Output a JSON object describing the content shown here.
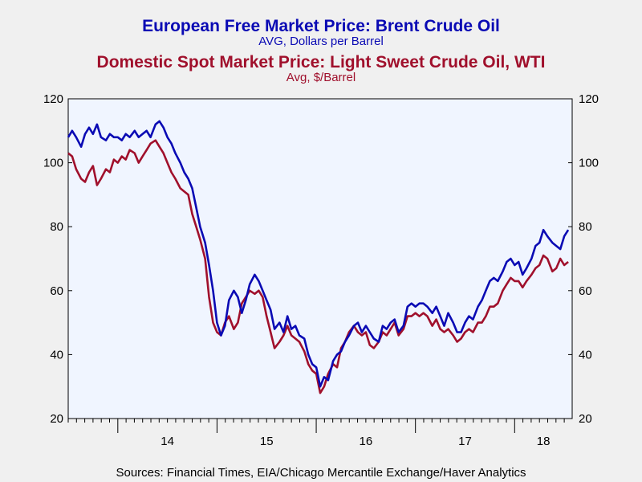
{
  "chart_data": {
    "type": "line",
    "titles": [
      {
        "title": "European Free Market Price: Brent Crude Oil",
        "subtitle": "AVG, Dollars per Barrel",
        "color": "#0a0ab4"
      },
      {
        "title": "Domestic Spot Market Price: Light Sweet Crude Oil, WTI",
        "subtitle": "Avg, $/Barrel",
        "color": "#a0102c"
      }
    ],
    "ylim": [
      20,
      120
    ],
    "yticks": [
      20,
      40,
      60,
      80,
      100,
      120
    ],
    "y_tick_labels": [
      "20",
      "40",
      "60",
      "80",
      "100",
      "120"
    ],
    "xlim": [
      2013.5,
      2018.58
    ],
    "year_ticks": [
      2014,
      2015,
      2016,
      2017,
      2018
    ],
    "x_tick_labels": [
      "14",
      "15",
      "16",
      "17",
      "18"
    ],
    "grid": false,
    "right_axis": true,
    "series": [
      {
        "name": "Brent",
        "color": "#0a0ab4",
        "x": [
          2013.5,
          2013.54,
          2013.58,
          2013.63,
          2013.67,
          2013.71,
          2013.75,
          2013.79,
          2013.83,
          2013.88,
          2013.92,
          2013.96,
          2014.0,
          2014.04,
          2014.08,
          2014.12,
          2014.17,
          2014.21,
          2014.25,
          2014.29,
          2014.33,
          2014.38,
          2014.42,
          2014.46,
          2014.5,
          2014.54,
          2014.58,
          2014.63,
          2014.67,
          2014.71,
          2014.75,
          2014.79,
          2014.83,
          2014.88,
          2014.92,
          2014.96,
          2015.0,
          2015.04,
          2015.08,
          2015.12,
          2015.17,
          2015.21,
          2015.25,
          2015.29,
          2015.33,
          2015.38,
          2015.42,
          2015.46,
          2015.5,
          2015.54,
          2015.58,
          2015.63,
          2015.67,
          2015.71,
          2015.75,
          2015.79,
          2015.83,
          2015.88,
          2015.92,
          2015.96,
          2016.0,
          2016.04,
          2016.08,
          2016.12,
          2016.17,
          2016.21,
          2016.25,
          2016.29,
          2016.33,
          2016.38,
          2016.42,
          2016.46,
          2016.5,
          2016.54,
          2016.58,
          2016.63,
          2016.67,
          2016.71,
          2016.75,
          2016.79,
          2016.83,
          2016.88,
          2016.92,
          2016.96,
          2017.0,
          2017.04,
          2017.08,
          2017.12,
          2017.17,
          2017.21,
          2017.25,
          2017.29,
          2017.33,
          2017.38,
          2017.42,
          2017.46,
          2017.5,
          2017.54,
          2017.58,
          2017.63,
          2017.67,
          2017.71,
          2017.75,
          2017.79,
          2017.83,
          2017.88,
          2017.92,
          2017.96,
          2018.0,
          2018.04,
          2018.08,
          2018.12,
          2018.17,
          2018.21,
          2018.25,
          2018.29,
          2018.33,
          2018.38,
          2018.42,
          2018.46,
          2018.5,
          2018.54
        ],
        "values": [
          108,
          110,
          108,
          105,
          109,
          111,
          109,
          112,
          108,
          107,
          109,
          108,
          108,
          107,
          109,
          108,
          110,
          108,
          109,
          110,
          108,
          112,
          113,
          111,
          108,
          106,
          103,
          100,
          97,
          95,
          92,
          86,
          80,
          75,
          68,
          60,
          50,
          46,
          49,
          57,
          60,
          58,
          53,
          57,
          62,
          65,
          63,
          60,
          57,
          54,
          48,
          50,
          47,
          52,
          48,
          49,
          46,
          45,
          40,
          37,
          36,
          30,
          33,
          32,
          38,
          40,
          41,
          44,
          46,
          49,
          50,
          47,
          49,
          47,
          45,
          44,
          49,
          48,
          50,
          51,
          47,
          49,
          55,
          56,
          55,
          56,
          56,
          55,
          53,
          55,
          52,
          49,
          53,
          50,
          47,
          47,
          50,
          52,
          51,
          55,
          57,
          60,
          63,
          64,
          63,
          66,
          69,
          70,
          68,
          69,
          65,
          67,
          70,
          74,
          75,
          79,
          77,
          75,
          74,
          73,
          77,
          79
        ]
      },
      {
        "name": "WTI",
        "color": "#a0102c",
        "x": [
          2013.5,
          2013.54,
          2013.58,
          2013.63,
          2013.67,
          2013.71,
          2013.75,
          2013.79,
          2013.83,
          2013.88,
          2013.92,
          2013.96,
          2014.0,
          2014.04,
          2014.08,
          2014.12,
          2014.17,
          2014.21,
          2014.25,
          2014.29,
          2014.33,
          2014.38,
          2014.42,
          2014.46,
          2014.5,
          2014.54,
          2014.58,
          2014.63,
          2014.67,
          2014.71,
          2014.75,
          2014.79,
          2014.83,
          2014.88,
          2014.92,
          2014.96,
          2015.0,
          2015.04,
          2015.08,
          2015.12,
          2015.17,
          2015.21,
          2015.25,
          2015.29,
          2015.33,
          2015.38,
          2015.42,
          2015.46,
          2015.5,
          2015.54,
          2015.58,
          2015.63,
          2015.67,
          2015.71,
          2015.75,
          2015.79,
          2015.83,
          2015.88,
          2015.92,
          2015.96,
          2016.0,
          2016.04,
          2016.08,
          2016.12,
          2016.17,
          2016.21,
          2016.25,
          2016.29,
          2016.33,
          2016.38,
          2016.42,
          2016.46,
          2016.5,
          2016.54,
          2016.58,
          2016.63,
          2016.67,
          2016.71,
          2016.75,
          2016.79,
          2016.83,
          2016.88,
          2016.92,
          2016.96,
          2017.0,
          2017.04,
          2017.08,
          2017.12,
          2017.17,
          2017.21,
          2017.25,
          2017.29,
          2017.33,
          2017.38,
          2017.42,
          2017.46,
          2017.5,
          2017.54,
          2017.58,
          2017.63,
          2017.67,
          2017.71,
          2017.75,
          2017.79,
          2017.83,
          2017.88,
          2017.92,
          2017.96,
          2018.0,
          2018.04,
          2018.08,
          2018.12,
          2018.17,
          2018.21,
          2018.25,
          2018.29,
          2018.33,
          2018.38,
          2018.42,
          2018.46,
          2018.5,
          2018.54
        ],
        "values": [
          103,
          102,
          98,
          95,
          94,
          97,
          99,
          93,
          95,
          98,
          97,
          101,
          100,
          102,
          101,
          104,
          103,
          100,
          102,
          104,
          106,
          107,
          105,
          103,
          100,
          97,
          95,
          92,
          91,
          90,
          84,
          80,
          76,
          70,
          58,
          50,
          47,
          46,
          50,
          52,
          48,
          50,
          56,
          58,
          60,
          59,
          60,
          58,
          52,
          47,
          42,
          44,
          46,
          49,
          46,
          45,
          44,
          41,
          37,
          35,
          34,
          28,
          30,
          34,
          37,
          36,
          42,
          44,
          47,
          49,
          47,
          46,
          47,
          43,
          42,
          44,
          47,
          46,
          48,
          50,
          46,
          48,
          52,
          52,
          53,
          52,
          53,
          52,
          49,
          51,
          48,
          47,
          48,
          46,
          44,
          45,
          47,
          48,
          47,
          50,
          50,
          52,
          55,
          55,
          56,
          60,
          62,
          64,
          63,
          63,
          61,
          63,
          65,
          67,
          68,
          71,
          70,
          66,
          67,
          70,
          68,
          69
        ]
      }
    ]
  },
  "footer": {
    "source": "Sources:  Financial Times, EIA/Chicago Mercantile Exchange/Haver Analytics"
  }
}
